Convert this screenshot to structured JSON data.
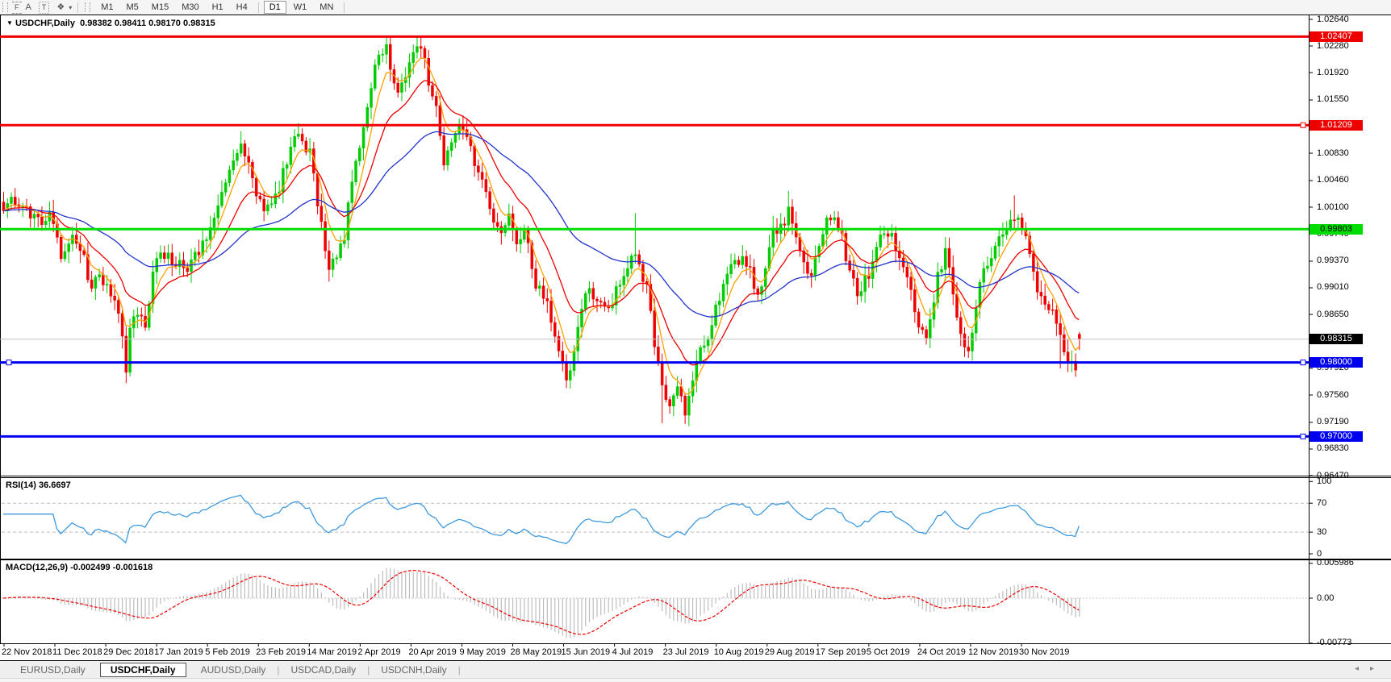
{
  "toolbar": {
    "tools": [
      {
        "name": "fibonacci-retracement-icon",
        "glyph": "F"
      },
      {
        "name": "text-icon",
        "glyph": "A"
      },
      {
        "name": "text-label-icon",
        "glyph": "T"
      },
      {
        "name": "arrow-tools-icon",
        "glyph": "❖"
      }
    ],
    "dropdown_glyph": "▾",
    "timeframes": [
      "M1",
      "M5",
      "M15",
      "M30",
      "H1",
      "H4",
      "D1",
      "W1",
      "MN"
    ],
    "active_timeframe": "D1"
  },
  "header": {
    "collapse_glyph": "▼",
    "symbol": "USDCHF,Daily",
    "open": "0.98382",
    "high": "0.98411",
    "low": "0.98170",
    "close": "0.98315"
  },
  "price_axis": {
    "ticks": [
      {
        "label": "1.02640",
        "value": 1.0264
      },
      {
        "label": "1.02280",
        "value": 1.0228
      },
      {
        "label": "1.01920",
        "value": 1.0192
      },
      {
        "label": "1.01550",
        "value": 1.0155
      },
      {
        "label": "1.00830",
        "value": 1.0083
      },
      {
        "label": "1.00460",
        "value": 1.0046
      },
      {
        "label": "1.00100",
        "value": 1.001
      },
      {
        "label": "0.99740",
        "value": 0.9974
      },
      {
        "label": "0.99370",
        "value": 0.9937
      },
      {
        "label": "0.99010",
        "value": 0.9901
      },
      {
        "label": "0.98650",
        "value": 0.9865
      },
      {
        "label": "0.97920",
        "value": 0.9792
      },
      {
        "label": "0.97560",
        "value": 0.9756
      },
      {
        "label": "0.97190",
        "value": 0.9719
      },
      {
        "label": "0.96830",
        "value": 0.9683
      },
      {
        "label": "0.96470",
        "value": 0.9647
      }
    ],
    "badges": [
      {
        "label": "1.02407",
        "value": 1.02407,
        "bg": "#EE0000",
        "fg": "#FFFFFF"
      },
      {
        "label": "1.01209",
        "value": 1.01209,
        "bg": "#EE0000",
        "fg": "#FFFFFF"
      },
      {
        "label": "0.99803",
        "value": 0.99803,
        "bg": "#00DD00",
        "fg": "#000000"
      },
      {
        "label": "0.98315",
        "value": 0.98315,
        "bg": "#000000",
        "fg": "#FFFFFF"
      },
      {
        "label": "0.98000",
        "value": 0.98,
        "bg": "#0000EE",
        "fg": "#FFFFFF"
      },
      {
        "label": "0.97000",
        "value": 0.97,
        "bg": "#0000EE",
        "fg": "#FFFFFF"
      }
    ]
  },
  "dates": {
    "labels": [
      "22 Nov 2018",
      "11 Dec 2018",
      "29 Dec 2018",
      "17 Jan 2019",
      "5 Feb 2019",
      "23 Feb 2019",
      "14 Mar 2019",
      "2 Apr 2019",
      "20 Apr 2019",
      "9 May 2019",
      "28 May 2019",
      "15 Jun 2019",
      "4 Jul 2019",
      "23 Jul 2019",
      "10 Aug 2019",
      "29 Aug 2019",
      "17 Sep 2019",
      "5 Oct 2019",
      "24 Oct 2019",
      "12 Nov 2019",
      "30 Nov 2019"
    ]
  },
  "chart_data": {
    "type": "candlestick",
    "symbol": "USDCHF",
    "timeframe": "Daily",
    "bars": 282,
    "bull_color": "#00CC00",
    "bear_color": "#EE0000",
    "price_range": {
      "top": 1.0264,
      "bottom": 0.9647
    },
    "price_anchors": [
      [
        0,
        1.0005
      ],
      [
        3,
        1.002
      ],
      [
        6,
        1.001
      ],
      [
        9,
        0.9992
      ],
      [
        12,
        1.0002
      ],
      [
        15,
        0.995
      ],
      [
        18,
        0.9968
      ],
      [
        21,
        0.9938
      ],
      [
        23,
        0.9905
      ],
      [
        26,
        0.9914
      ],
      [
        28,
        0.989
      ],
      [
        30,
        0.986
      ],
      [
        32,
        0.9795
      ],
      [
        33,
        0.985
      ],
      [
        35,
        0.9872
      ],
      [
        37,
        0.9852
      ],
      [
        39,
        0.9925
      ],
      [
        41,
        0.9942
      ],
      [
        43,
        0.9952
      ],
      [
        45,
        0.9933
      ],
      [
        48,
        0.9926
      ],
      [
        50,
        0.9945
      ],
      [
        52,
        0.9962
      ],
      [
        54,
        0.9985
      ],
      [
        56,
        1.0015
      ],
      [
        58,
        1.0052
      ],
      [
        60,
        1.0075
      ],
      [
        62,
        1.009
      ],
      [
        64,
        1.0066
      ],
      [
        65,
        1.0045
      ],
      [
        67,
        1.0012
      ],
      [
        69,
        1.0008
      ],
      [
        71,
        1.0022
      ],
      [
        73,
        1.0055
      ],
      [
        75,
        1.0095
      ],
      [
        76,
        1.0115
      ],
      [
        78,
        1.0098
      ],
      [
        80,
        1.0083
      ],
      [
        82,
        1.002
      ],
      [
        84,
        0.9958
      ],
      [
        85,
        0.993
      ],
      [
        87,
        0.9942
      ],
      [
        89,
        0.9975
      ],
      [
        91,
        1.004
      ],
      [
        93,
        1.0085
      ],
      [
        95,
        1.014
      ],
      [
        97,
        1.0195
      ],
      [
        99,
        1.0222
      ],
      [
        100,
        1.023
      ],
      [
        101,
        1.0205
      ],
      [
        103,
        1.016
      ],
      [
        105,
        1.0195
      ],
      [
        107,
        1.0218
      ],
      [
        109,
        1.0228
      ],
      [
        111,
        1.018
      ],
      [
        113,
        1.0148
      ],
      [
        115,
        1.007
      ],
      [
        117,
        1.0098
      ],
      [
        118,
        1.0115
      ],
      [
        120,
        1.0108
      ],
      [
        122,
        1.0085
      ],
      [
        124,
        1.0055
      ],
      [
        126,
        1.004
      ],
      [
        128,
        0.9995
      ],
      [
        130,
        0.9985
      ],
      [
        132,
        0.9992
      ],
      [
        134,
        0.9963
      ],
      [
        136,
        0.9985
      ],
      [
        138,
        0.992
      ],
      [
        140,
        0.99
      ],
      [
        142,
        0.9878
      ],
      [
        144,
        0.9828
      ],
      [
        146,
        0.98
      ],
      [
        147,
        0.9785
      ],
      [
        149,
        0.9812
      ],
      [
        151,
        0.987
      ],
      [
        153,
        0.9905
      ],
      [
        155,
        0.9882
      ],
      [
        157,
        0.987
      ],
      [
        159,
        0.9885
      ],
      [
        161,
        0.9905
      ],
      [
        163,
        0.993
      ],
      [
        165,
        0.995
      ],
      [
        167,
        0.9918
      ],
      [
        168,
        0.99
      ],
      [
        170,
        0.982
      ],
      [
        172,
        0.976
      ],
      [
        174,
        0.9745
      ],
      [
        176,
        0.9768
      ],
      [
        178,
        0.973
      ],
      [
        180,
        0.9775
      ],
      [
        182,
        0.9815
      ],
      [
        184,
        0.9838
      ],
      [
        186,
        0.9875
      ],
      [
        189,
        0.992
      ],
      [
        191,
        0.9945
      ],
      [
        193,
        0.9938
      ],
      [
        195,
        0.992
      ],
      [
        197,
        0.9895
      ],
      [
        199,
        0.993
      ],
      [
        201,
        0.9975
      ],
      [
        203,
        0.9985
      ],
      [
        205,
        1.0005
      ],
      [
        207,
        0.9975
      ],
      [
        209,
        0.9935
      ],
      [
        211,
        0.9915
      ],
      [
        213,
        0.996
      ],
      [
        215,
        0.999
      ],
      [
        217,
        1.0
      ],
      [
        219,
        0.9965
      ],
      [
        221,
        0.992
      ],
      [
        223,
        0.99
      ],
      [
        225,
        0.991
      ],
      [
        227,
        0.9935
      ],
      [
        229,
        0.9965
      ],
      [
        231,
        0.998
      ],
      [
        233,
        0.996
      ],
      [
        235,
        0.9935
      ],
      [
        237,
        0.99
      ],
      [
        239,
        0.985
      ],
      [
        241,
        0.983
      ],
      [
        243,
        0.988
      ],
      [
        244,
        0.9915
      ],
      [
        246,
        0.995
      ],
      [
        248,
        0.9895
      ],
      [
        250,
        0.984
      ],
      [
        252,
        0.9815
      ],
      [
        254,
        0.988
      ],
      [
        256,
        0.992
      ],
      [
        258,
        0.994
      ],
      [
        260,
        0.9965
      ],
      [
        262,
        0.9985
      ],
      [
        264,
        1.0
      ],
      [
        266,
        0.9985
      ],
      [
        268,
        0.995
      ],
      [
        270,
        0.9905
      ],
      [
        271,
        0.988
      ],
      [
        273,
        0.987
      ],
      [
        275,
        0.9855
      ],
      [
        276,
        0.983
      ],
      [
        278,
        0.981
      ],
      [
        280,
        0.9798
      ],
      [
        281,
        0.98315
      ]
    ],
    "spikes": [
      {
        "i": 32,
        "low": 0.9772
      },
      {
        "i": 100,
        "high": 1.0241
      },
      {
        "i": 147,
        "low": 0.9773
      },
      {
        "i": 165,
        "high": 1.0002
      },
      {
        "i": 172,
        "low": 0.9718
      },
      {
        "i": 178,
        "low": 0.9722
      },
      {
        "i": 205,
        "high": 1.0032
      },
      {
        "i": 264,
        "high": 1.0026
      },
      {
        "i": 276,
        "low": 0.9792
      },
      {
        "i": 280,
        "low": 0.979
      }
    ],
    "last_bar": {
      "open": 0.98382,
      "high": 0.98411,
      "low": 0.9817,
      "close": 0.98315
    },
    "moving_averages": [
      {
        "name": "fast-ma",
        "period": 6,
        "color": "#FFA000"
      },
      {
        "name": "medium-ma",
        "period": 16,
        "color": "#EE0000"
      },
      {
        "name": "slow-ma",
        "period": 48,
        "color": "#2233CC"
      }
    ],
    "levels": [
      {
        "name": "resistance-1",
        "price": 1.02407,
        "color": "#EE0000",
        "width": 3,
        "handles": []
      },
      {
        "name": "resistance-2",
        "price": 1.01209,
        "color": "#EE0000",
        "width": 3,
        "handles": [
          "right"
        ]
      },
      {
        "name": "pivot-green",
        "price": 0.99803,
        "color": "#00DD00",
        "width": 3,
        "handles": []
      },
      {
        "name": "current-price-line",
        "price": 0.98315,
        "color": "#C0C0C0",
        "width": 1,
        "handles": []
      },
      {
        "name": "support-1",
        "price": 0.98,
        "color": "#0000EE",
        "width": 3,
        "handles": [
          "left",
          "right"
        ]
      },
      {
        "name": "support-2",
        "price": 0.97,
        "color": "#0000EE",
        "width": 3,
        "handles": [
          "right"
        ]
      }
    ],
    "rsi": {
      "label": "RSI(14)",
      "value": "36.6697",
      "period": 14,
      "color": "#3E9ADE",
      "scale": [
        0,
        100
      ],
      "ticks": [
        {
          "label": "100",
          "value": 100,
          "dashed": false
        },
        {
          "label": "70",
          "value": 70,
          "dashed": true
        },
        {
          "label": "30",
          "value": 30,
          "dashed": true
        },
        {
          "label": "0",
          "value": 0,
          "dashed": false
        }
      ]
    },
    "macd": {
      "label": "MACD(12,26,9)",
      "values": "-0.002499 -0.001618",
      "fast": 12,
      "slow": 26,
      "signal_period": 9,
      "hist_color": "#BDBDBD",
      "signal_color": "#EE0000",
      "ticks": [
        {
          "label": "0.005986",
          "value": 0.005986
        },
        {
          "label": "0.00",
          "value": 0
        },
        {
          "label": "-0.00773",
          "value": -0.00773
        }
      ]
    }
  },
  "tabs": {
    "items": [
      {
        "label": "EURUSD,Daily",
        "active": false
      },
      {
        "label": "USDCHF,Daily",
        "active": true
      },
      {
        "label": "AUDUSD,Daily",
        "active": false
      },
      {
        "label": "USDCAD,Daily",
        "active": false
      },
      {
        "label": "USDCNH,Daily",
        "active": false
      }
    ],
    "scroll_left_glyph": "◂",
    "scroll_right_glyph": "▸"
  }
}
